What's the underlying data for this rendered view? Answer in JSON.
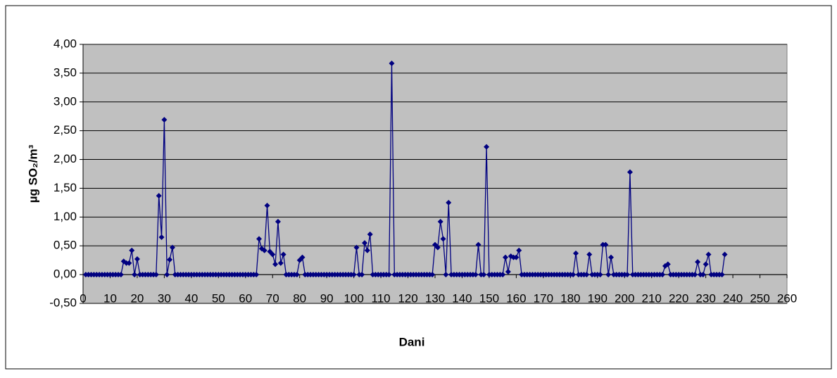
{
  "chart_data": {
    "type": "line",
    "x_label": "Dani",
    "y_label": "µg SO₂/m³",
    "x": [
      1,
      2,
      3,
      4,
      5,
      6,
      7,
      8,
      9,
      10,
      11,
      12,
      13,
      14,
      15,
      16,
      17,
      18,
      19,
      20,
      21,
      22,
      23,
      24,
      25,
      26,
      27,
      28,
      29,
      30,
      31,
      32,
      33,
      34,
      35,
      36,
      37,
      38,
      39,
      40,
      41,
      42,
      43,
      44,
      45,
      46,
      47,
      48,
      49,
      50,
      51,
      52,
      53,
      54,
      55,
      56,
      57,
      58,
      59,
      60,
      61,
      62,
      63,
      64,
      65,
      66,
      67,
      68,
      69,
      70,
      71,
      72,
      73,
      74,
      75,
      76,
      77,
      78,
      79,
      80,
      81,
      82,
      83,
      84,
      85,
      86,
      87,
      88,
      89,
      90,
      91,
      92,
      93,
      94,
      95,
      96,
      97,
      98,
      99,
      100,
      101,
      102,
      103,
      104,
      105,
      106,
      107,
      108,
      109,
      110,
      111,
      112,
      113,
      114,
      115,
      116,
      117,
      118,
      119,
      120,
      121,
      122,
      123,
      124,
      125,
      126,
      127,
      128,
      129,
      130,
      131,
      132,
      133,
      134,
      135,
      136,
      137,
      138,
      139,
      140,
      141,
      142,
      143,
      144,
      145,
      146,
      147,
      148,
      149,
      150,
      151,
      152,
      153,
      154,
      155,
      156,
      157,
      158,
      159,
      160,
      161,
      162,
      163,
      164,
      165,
      166,
      167,
      168,
      169,
      170,
      171,
      172,
      173,
      174,
      175,
      176,
      177,
      178,
      179,
      180,
      181,
      182,
      183,
      184,
      185,
      186,
      187,
      188,
      189,
      190,
      191,
      192,
      193,
      194,
      195,
      196,
      197,
      198,
      199,
      200,
      201,
      202,
      203,
      204,
      205,
      206,
      207,
      208,
      209,
      210,
      211,
      212,
      213,
      214,
      215,
      216,
      217,
      218,
      219,
      220,
      221,
      222,
      223,
      224,
      225,
      226,
      227,
      228,
      229,
      230,
      231,
      232,
      233,
      234,
      235,
      236,
      237
    ],
    "series": [
      {
        "color": "#000080",
        "values": [
          0,
          0,
          0,
          0,
          0,
          0,
          0,
          0,
          0,
          0,
          0,
          0,
          0,
          0,
          0.23,
          0.2,
          0.2,
          0.42,
          0,
          0.27,
          0,
          0,
          0,
          0,
          0,
          0,
          0,
          1.37,
          0.65,
          2.69,
          0,
          0.26,
          0.47,
          0,
          0,
          0,
          0,
          0,
          0,
          0,
          0,
          0,
          0,
          0,
          0,
          0,
          0,
          0,
          0,
          0,
          0,
          0,
          0,
          0,
          0,
          0,
          0,
          0,
          0,
          0,
          0,
          0,
          0,
          0,
          0.62,
          0.45,
          0.42,
          1.2,
          0.4,
          0.35,
          0.18,
          0.92,
          0.2,
          0.35,
          0,
          0,
          0,
          0,
          0,
          0.25,
          0.3,
          0,
          0,
          0,
          0,
          0,
          0,
          0,
          0,
          0,
          0,
          0,
          0,
          0,
          0,
          0,
          0,
          0,
          0,
          0,
          0.47,
          0,
          0,
          0.55,
          0.42,
          0.7,
          0,
          0,
          0,
          0,
          0,
          0,
          0,
          3.67,
          0,
          0,
          0,
          0,
          0,
          0,
          0,
          0,
          0,
          0,
          0,
          0,
          0,
          0,
          0,
          0.52,
          0.47,
          0.92,
          0.62,
          0,
          1.25,
          0,
          0,
          0,
          0,
          0,
          0,
          0,
          0,
          0,
          0,
          0.52,
          0,
          0,
          2.22,
          0,
          0,
          0,
          0,
          0,
          0,
          0.3,
          0.05,
          0.32,
          0.3,
          0.3,
          0.42,
          0,
          0,
          0,
          0,
          0,
          0,
          0,
          0,
          0,
          0,
          0,
          0,
          0,
          0,
          0,
          0,
          0,
          0,
          0,
          0,
          0.37,
          0,
          0,
          0,
          0,
          0.35,
          0,
          0,
          0,
          0,
          0.52,
          0.52,
          0,
          0.3,
          0,
          0,
          0,
          0,
          0,
          0,
          1.78,
          0,
          0,
          0,
          0,
          0,
          0,
          0,
          0,
          0,
          0,
          0,
          0,
          0.15,
          0.18,
          0,
          0,
          0,
          0,
          0,
          0,
          0,
          0,
          0,
          0,
          0.22,
          0,
          0,
          0.18,
          0.35,
          0,
          0,
          0,
          0,
          0,
          0.35
        ]
      }
    ],
    "xlim": [
      0,
      260
    ],
    "xticks": [
      0,
      10,
      20,
      30,
      40,
      50,
      60,
      70,
      80,
      90,
      100,
      110,
      120,
      130,
      140,
      150,
      160,
      170,
      180,
      190,
      200,
      210,
      220,
      230,
      240,
      250,
      260
    ],
    "ylim": [
      -0.5,
      4
    ],
    "yticks": [
      {
        "value": -0.5,
        "label": "-0,50"
      },
      {
        "value": 0,
        "label": "0,00"
      },
      {
        "value": 0.5,
        "label": "0,50"
      },
      {
        "value": 1,
        "label": "1,00"
      },
      {
        "value": 1.5,
        "label": "1,50"
      },
      {
        "value": 2,
        "label": "2,00"
      },
      {
        "value": 2.5,
        "label": "2,50"
      },
      {
        "value": 3,
        "label": "3,00"
      },
      {
        "value": 3.5,
        "label": "3,50"
      },
      {
        "value": 4,
        "label": "4,00"
      }
    ],
    "grid": true,
    "background": "#c0c0c0"
  }
}
